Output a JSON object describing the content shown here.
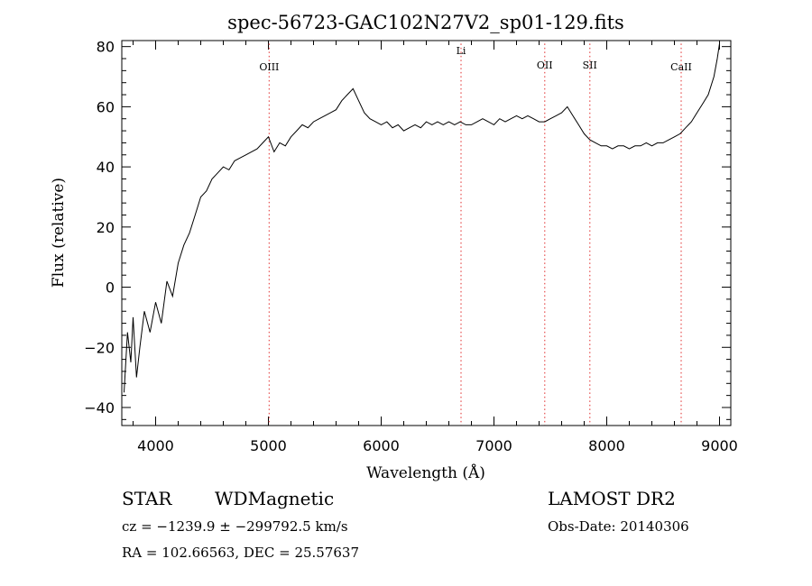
{
  "chart_data": {
    "type": "line",
    "title": "spec-56723-GAC102N27V2_sp01-129.fits",
    "xlabel": "Wavelength (Å)",
    "ylabel": "Flux (relative)",
    "xlim": [
      3700,
      9100
    ],
    "ylim": [
      -46,
      82
    ],
    "xticks": [
      4000,
      5000,
      6000,
      7000,
      8000,
      9000
    ],
    "yticks": [
      -40,
      -20,
      0,
      20,
      40,
      60,
      80
    ],
    "grid": false,
    "series": [
      {
        "x": [
          3720,
          3750,
          3780,
          3800,
          3830,
          3860,
          3900,
          3950,
          4000,
          4050,
          4100,
          4150,
          4200,
          4250,
          4300,
          4350,
          4400,
          4450,
          4500,
          4550,
          4600,
          4650,
          4700,
          4750,
          4800,
          4850,
          4900,
          4950,
          5000,
          5050,
          5100,
          5150,
          5200,
          5250,
          5300,
          5350,
          5400,
          5450,
          5500,
          5550,
          5600,
          5650,
          5700,
          5750,
          5800,
          5850,
          5900,
          5950,
          6000,
          6050,
          6100,
          6150,
          6200,
          6250,
          6300,
          6350,
          6400,
          6450,
          6500,
          6550,
          6600,
          6650,
          6700,
          6750,
          6800,
          6850,
          6900,
          6950,
          7000,
          7050,
          7100,
          7150,
          7200,
          7250,
          7300,
          7350,
          7400,
          7450,
          7500,
          7550,
          7600,
          7650,
          7700,
          7750,
          7800,
          7850,
          7900,
          7950,
          8000,
          8050,
          8100,
          8150,
          8200,
          8250,
          8300,
          8350,
          8400,
          8450,
          8500,
          8550,
          8600,
          8650,
          8700,
          8750,
          8800,
          8850,
          8900,
          8950,
          8980,
          9000
        ],
        "values": [
          -35,
          -15,
          -25,
          -10,
          -30,
          -20,
          -8,
          -15,
          -5,
          -12,
          2,
          -3,
          8,
          14,
          18,
          24,
          30,
          32,
          36,
          38,
          40,
          39,
          42,
          43,
          44,
          45,
          46,
          48,
          50,
          45,
          48,
          47,
          50,
          52,
          54,
          53,
          55,
          56,
          57,
          58,
          59,
          62,
          64,
          66,
          62,
          58,
          56,
          55,
          54,
          55,
          53,
          54,
          52,
          53,
          54,
          53,
          55,
          54,
          55,
          54,
          55,
          54,
          55,
          54,
          54,
          55,
          56,
          55,
          54,
          56,
          55,
          56,
          57,
          56,
          57,
          56,
          55,
          55,
          56,
          57,
          58,
          60,
          57,
          54,
          51,
          49,
          48,
          47,
          47,
          46,
          47,
          47,
          46,
          47,
          47,
          48,
          47,
          48,
          48,
          49,
          50,
          51,
          53,
          55,
          58,
          61,
          64,
          70,
          76,
          81
        ]
      }
    ],
    "annotations": [
      {
        "label": "OIII",
        "x": 5007
      },
      {
        "label": "Li",
        "x": 6708
      },
      {
        "label": "OII",
        "x": 7450
      },
      {
        "label": "SII",
        "x": 7850
      },
      {
        "label": "CaII",
        "x": 8660
      }
    ],
    "annotation_color": "#e85a5a"
  },
  "info": {
    "object_class": "STAR",
    "subclass": "WDMagnetic",
    "survey": "LAMOST DR2",
    "cz": "cz = −1239.9 ± −299792.5 km/s",
    "obs_date": "Obs-Date: 20140306",
    "coords": "RA = 102.66563, DEC =  25.57637"
  }
}
